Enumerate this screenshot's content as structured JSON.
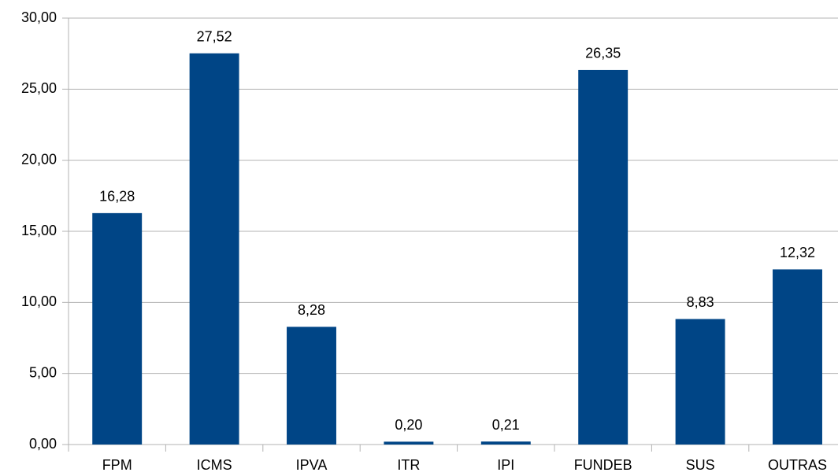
{
  "chart_data": {
    "type": "bar",
    "categories": [
      "FPM",
      "ICMS",
      "IPVA",
      "ITR",
      "IPI",
      "FUNDEB",
      "SUS",
      "OUTRAS"
    ],
    "values": [
      16.28,
      27.52,
      8.28,
      0.2,
      0.21,
      26.35,
      8.83,
      12.32
    ],
    "value_labels": [
      "16,28",
      "27,52",
      "8,28",
      "0,20",
      "0,21",
      "26,35",
      "8,83",
      "12,32"
    ],
    "color": "#004586",
    "ylim": [
      0,
      30
    ],
    "yticks": [
      {
        "value": 0,
        "label": "0,00"
      },
      {
        "value": 5,
        "label": "5,00"
      },
      {
        "value": 10,
        "label": "10,00"
      },
      {
        "value": 15,
        "label": "15,00"
      },
      {
        "value": 20,
        "label": "20,00"
      },
      {
        "value": 25,
        "label": "25,00"
      },
      {
        "value": 30,
        "label": "30,00"
      }
    ],
    "grid": true
  }
}
